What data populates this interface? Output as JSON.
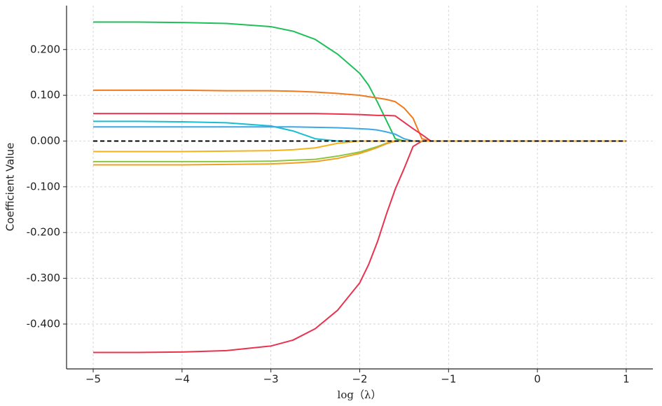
{
  "chart_data": {
    "type": "line",
    "x_label": "log（λ）",
    "y_label": "Coefficient Value",
    "x": [
      -5,
      -4.5,
      -4,
      -3.5,
      -3,
      -2.75,
      -2.5,
      -2.25,
      -2,
      -1.9,
      -1.8,
      -1.7,
      -1.6,
      -1.5,
      -1.4,
      -1.3,
      -1.2,
      -1,
      0,
      1
    ],
    "series": [
      {
        "color": "#1fbf5a",
        "values": [
          0.26,
          0.26,
          0.259,
          0.257,
          0.25,
          0.24,
          0.222,
          0.19,
          0.148,
          0.122,
          0.085,
          0.045,
          0.005,
          0,
          0,
          0,
          0,
          0,
          0,
          0
        ]
      },
      {
        "color": "#f07a1e",
        "values": [
          0.111,
          0.111,
          0.111,
          0.11,
          0.11,
          0.109,
          0.107,
          0.104,
          0.1,
          0.097,
          0.094,
          0.091,
          0.086,
          0.072,
          0.05,
          0.005,
          0,
          0,
          0,
          0
        ]
      },
      {
        "color": "#e8334f",
        "values": [
          0.06,
          0.06,
          0.06,
          0.06,
          0.06,
          0.06,
          0.06,
          0.059,
          0.058,
          0.057,
          0.056,
          0.056,
          0.055,
          0.041,
          0.027,
          0.014,
          0,
          0,
          0,
          0
        ]
      },
      {
        "color": "#17becf",
        "values": [
          0.043,
          0.043,
          0.042,
          0.04,
          0.033,
          0.022,
          0.005,
          0,
          0,
          0,
          0,
          0,
          0,
          0,
          0,
          0,
          0,
          0,
          0,
          0
        ]
      },
      {
        "color": "#3aa8e8",
        "values": [
          0.031,
          0.031,
          0.031,
          0.031,
          0.031,
          0.031,
          0.03,
          0.029,
          0.027,
          0.026,
          0.024,
          0.02,
          0.015,
          0.005,
          0,
          0,
          0,
          0,
          0,
          0
        ]
      },
      {
        "color": "#e8334f",
        "values": [
          -0.462,
          -0.462,
          -0.461,
          -0.458,
          -0.448,
          -0.435,
          -0.41,
          -0.37,
          -0.31,
          -0.27,
          -0.22,
          -0.16,
          -0.105,
          -0.06,
          -0.012,
          0,
          0,
          0,
          0,
          0
        ]
      },
      {
        "color": "#f5b21b",
        "values": [
          -0.023,
          -0.023,
          -0.023,
          -0.022,
          -0.021,
          -0.019,
          -0.015,
          -0.005,
          0,
          0,
          0,
          0,
          0,
          0,
          0,
          0,
          0,
          0,
          0,
          0
        ]
      },
      {
        "color": "#8cc63f",
        "values": [
          -0.045,
          -0.045,
          -0.045,
          -0.045,
          -0.044,
          -0.042,
          -0.04,
          -0.033,
          -0.024,
          -0.018,
          -0.012,
          -0.005,
          0,
          0,
          0,
          0,
          0,
          0,
          0,
          0
        ]
      },
      {
        "color": "#f0a020",
        "values": [
          -0.052,
          -0.052,
          -0.052,
          -0.051,
          -0.05,
          -0.048,
          -0.045,
          -0.038,
          -0.027,
          -0.021,
          -0.014,
          -0.006,
          0,
          0,
          0,
          0,
          0,
          0,
          0,
          0
        ]
      }
    ],
    "reference_line": 0,
    "xlim": [
      -5.3,
      1.3
    ],
    "xticks": [
      {
        "value": -5,
        "label": "−5"
      },
      {
        "value": -4,
        "label": "−4"
      },
      {
        "value": -3,
        "label": "−3"
      },
      {
        "value": -2,
        "label": "−2"
      },
      {
        "value": -1,
        "label": "−1"
      },
      0,
      1
    ],
    "ylim": [
      -0.498,
      0.296
    ],
    "yticks": [
      {
        "value": -0.4,
        "label": "-0.400"
      },
      {
        "value": -0.3,
        "label": "-0.300"
      },
      {
        "value": -0.2,
        "label": "-0.200"
      },
      {
        "value": -0.1,
        "label": "-0.100"
      },
      {
        "value": 0,
        "label": "0.000"
      },
      {
        "value": 0.1,
        "label": "0.100"
      },
      {
        "value": 0.2,
        "label": "0.200"
      }
    ],
    "grid": true
  }
}
